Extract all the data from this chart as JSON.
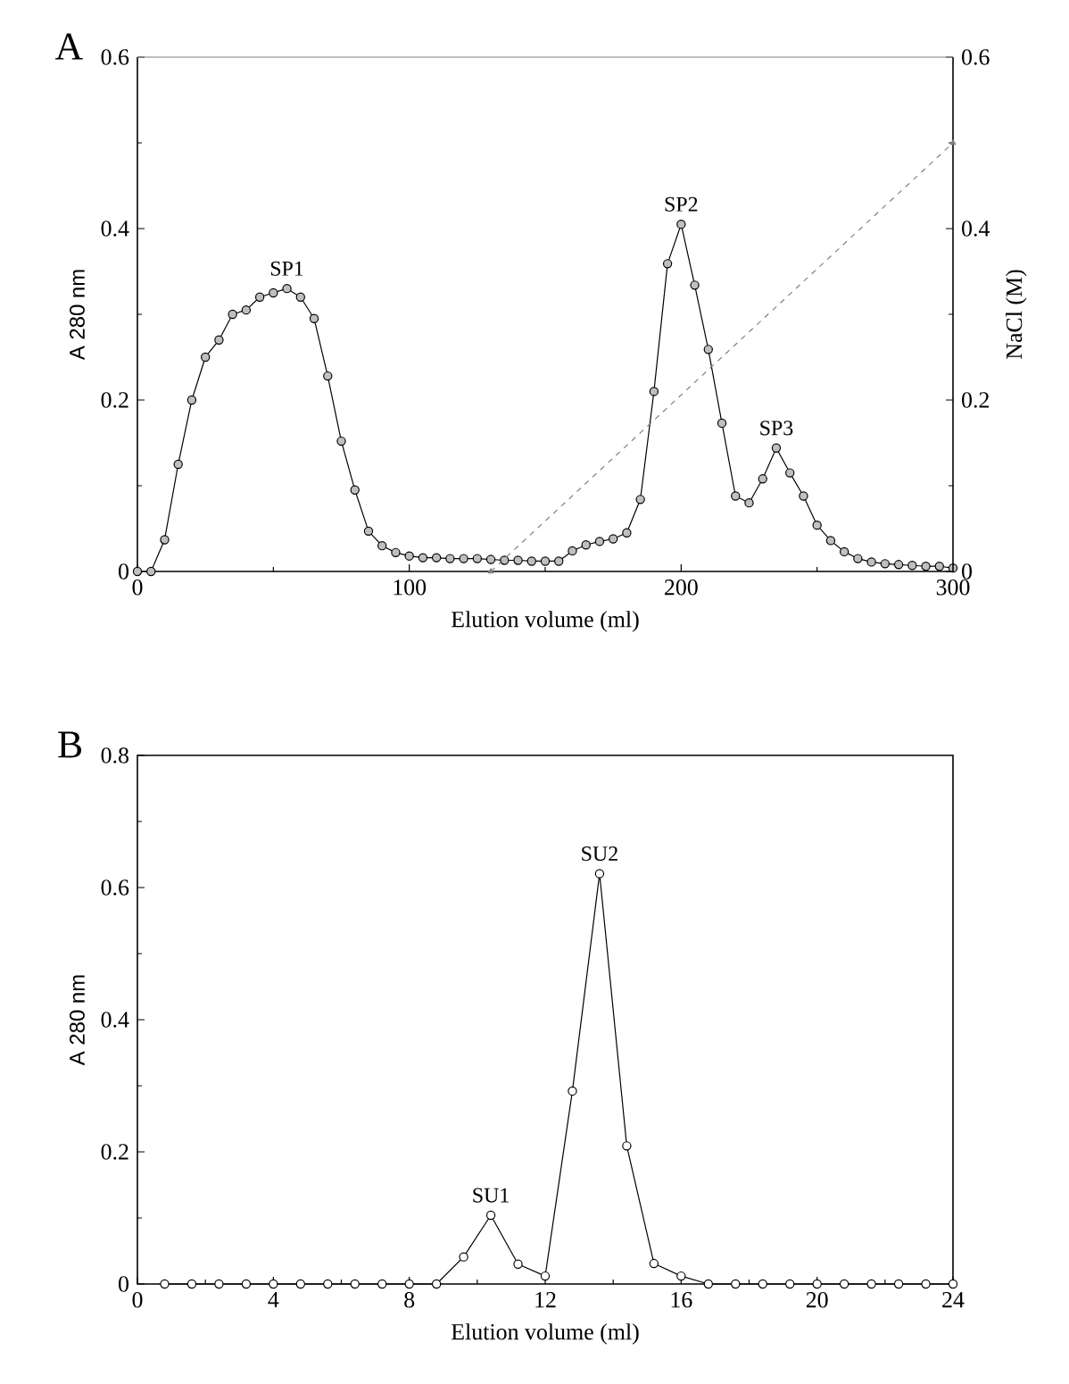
{
  "chart_data": [
    {
      "type": "line",
      "title": "A",
      "xlabel": "Elution volume (ml)",
      "ylabel": "A 280 nm",
      "y2label": "NaCl (M)",
      "x": [
        0,
        5,
        10,
        15,
        20,
        25,
        30,
        35,
        40,
        45,
        50,
        55,
        60,
        65,
        70,
        75,
        80,
        85,
        90,
        95,
        100,
        105,
        110,
        115,
        120,
        125,
        130,
        135,
        140,
        145,
        150,
        155,
        160,
        165,
        170,
        175,
        180,
        185,
        190,
        195,
        200,
        205,
        210,
        215,
        220,
        225,
        230,
        235,
        240,
        245,
        250,
        255,
        260,
        265,
        270,
        275,
        280,
        285,
        290,
        295,
        300
      ],
      "series": [
        {
          "color": "#bfbfbf",
          "marker": "circle",
          "line_style": "solid",
          "values": [
            0,
            0,
            0.037,
            0.125,
            0.2,
            0.25,
            0.27,
            0.3,
            0.305,
            0.32,
            0.325,
            0.33,
            0.32,
            0.295,
            0.228,
            0.152,
            0.095,
            0.047,
            0.03,
            0.022,
            0.018,
            0.016,
            0.016,
            0.015,
            0.015,
            0.015,
            0.014,
            0.013,
            0.013,
            0.012,
            0.012,
            0.012,
            0.024,
            0.031,
            0.035,
            0.038,
            0.045,
            0.084,
            0.21,
            0.359,
            0.405,
            0.334,
            0.259,
            0.173,
            0.088,
            0.08,
            0.108,
            0.144,
            0.115,
            0.088,
            0.054,
            0.036,
            0.023,
            0.015,
            0.011,
            0.009,
            0.008,
            0.007,
            0.006,
            0.006,
            0.004
          ]
        },
        {
          "type": "line",
          "axis": "y2",
          "color": "#808080",
          "marker": "triangle",
          "line_style": "dashed",
          "x": [
            130,
            300
          ],
          "values": [
            0,
            0.5
          ]
        }
      ],
      "xlim": [
        0,
        300
      ],
      "xticks": [
        0,
        100,
        200,
        300
      ],
      "ylim": [
        0,
        0.6
      ],
      "yticks": [
        0,
        0.2,
        0.4,
        0.6
      ],
      "y2lim": [
        0,
        0.6
      ],
      "y2ticks": [
        0,
        0.2,
        0.4,
        0.6
      ],
      "annotations": [
        {
          "text": "SP1",
          "x": 55,
          "y": 0.33
        },
        {
          "text": "SP2",
          "x": 200,
          "y": 0.405
        },
        {
          "text": "SP3",
          "x": 235,
          "y": 0.144
        }
      ]
    },
    {
      "type": "line",
      "title": "B",
      "xlabel": "Elution volume (ml)",
      "ylabel": "A 280 nm",
      "x": [
        0.8,
        1.6,
        2.4,
        3.2,
        4.0,
        4.8,
        5.6,
        6.4,
        7.2,
        8.0,
        8.8,
        9.6,
        10.4,
        11.2,
        12.0,
        12.8,
        13.6,
        14.4,
        15.2,
        16.0,
        16.8,
        17.6,
        18.4,
        19.2,
        20.0,
        20.8,
        21.6,
        22.4,
        23.2,
        24.0
      ],
      "series": [
        {
          "color": "#ffffff",
          "marker": "circle",
          "line_style": "solid",
          "values": [
            0,
            0,
            0,
            0,
            0,
            0,
            0,
            0,
            0,
            0,
            0,
            0.041,
            0.104,
            0.03,
            0.012,
            0.292,
            0.621,
            0.209,
            0.031,
            0.012,
            0,
            0,
            0,
            0,
            0,
            0,
            0,
            0,
            0,
            0
          ]
        }
      ],
      "xlim": [
        0,
        24
      ],
      "xticks": [
        0,
        4,
        8,
        12,
        16,
        20,
        24
      ],
      "ylim": [
        0,
        0.8
      ],
      "yticks": [
        0,
        0.2,
        0.4,
        0.6,
        0.8
      ],
      "annotations": [
        {
          "text": "SU1",
          "x": 10.4,
          "y": 0.104
        },
        {
          "text": "SU2",
          "x": 13.6,
          "y": 0.621
        }
      ]
    }
  ]
}
